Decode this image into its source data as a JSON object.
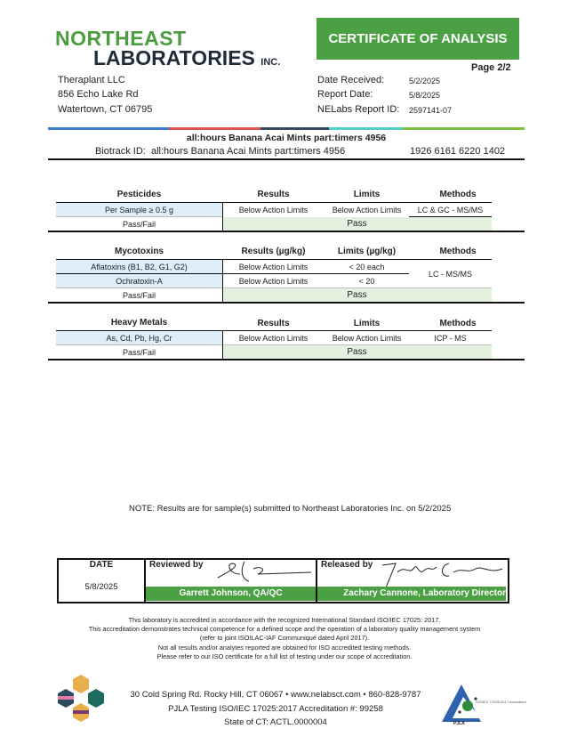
{
  "header": {
    "logo_line1": "NORTHEAST",
    "logo_line2": "LABORATORIES",
    "logo_suffix": "INC.",
    "banner": "CERTIFICATE OF ANALYSIS",
    "page": "Page 2/2"
  },
  "client": {
    "name": "Theraplant LLC",
    "address1": "856 Echo Lake Rd",
    "address2": "Watertown, CT 06795"
  },
  "report": {
    "date_received_label": "Date Received:",
    "date_received": "5/2/2025",
    "report_date_label": "Report Date:",
    "report_date": "5/8/2025",
    "report_id_label": "NELabs Report ID:",
    "report_id": "2597141-07"
  },
  "sample": {
    "title": "all:hours Banana Acai Mints part:timers 4956",
    "biotrack_label": "Biotrack ID:",
    "biotrack_name": "all:hours Banana Acai Mints part:timers 4956",
    "biotrack_id": "1926 6161 6220 1402"
  },
  "colors": {
    "accent": "#4aa043",
    "bar": [
      "#3b7bc8",
      "#e05252",
      "#34495e",
      "#4fd1c5",
      "#7cc23f"
    ]
  },
  "pesticides": {
    "headers": [
      "Pesticides",
      "Results",
      "Limits",
      "Methods"
    ],
    "row": [
      "Per Sample ≥ 0.5 g",
      "Below Action Limits",
      "Below Action Limits",
      "LC & GC - MS/MS"
    ],
    "pf_label": "Pass/Fail",
    "pf": "Pass"
  },
  "mycotoxins": {
    "headers": [
      "Mycotoxins",
      "Results (µg/kg)",
      "Limits (µg/kg)",
      "Methods"
    ],
    "rows": [
      [
        "Aflatoxins (B1, B2, G1, G2)",
        "Below Action Limits",
        "< 20 each"
      ],
      [
        "Ochratoxin-A",
        "Below Action Limits",
        "< 20"
      ]
    ],
    "method": "LC - MS/MS",
    "pf_label": "Pass/Fail",
    "pf": "Pass"
  },
  "metals": {
    "headers": [
      "Heavy Metals",
      "Results",
      "Limits",
      "Methods"
    ],
    "row": [
      "As, Cd, Pb, Hg, Cr",
      "Below Action Limits",
      "Below Action Limits",
      "ICP - MS"
    ],
    "pf_label": "Pass/Fail",
    "pf": "Pass"
  },
  "note": {
    "text": "NOTE: Results are for sample(s) submitted to Northeast Laboratories Inc. on",
    "date": "5/2/2025"
  },
  "signoff": {
    "date_label": "DATE",
    "date": "5/8/2025",
    "reviewed_label": "Reviewed by",
    "reviewer": "Garrett Johnson, QA/QC",
    "released_label": "Released by",
    "releaser": "Zachary Cannone, Laboratory Director"
  },
  "accreditation": [
    "This laboratory is accredited in accordance with the recognized International Standard ISO/IEC 17025: 2017.",
    "This accreditation demonstrates technical competence for a defined scope and the operation of a laboratory quality management system",
    "(refer to joint ISOILAC-IAF Communiqué dated April 2017).",
    "Not all results and/or analytes reported are obtained for ISO accredited testing methods.",
    "Please refer to our ISO certificate for a full list of testing under our scope of accreditation."
  ],
  "footer": {
    "line1": "30 Cold Spring Rd. Rocky Hill, CT 06067  •  www.nelabsct.com  •  860-828-9787",
    "line2": "PJLA Testing ISO/IEC 17025:2017 Accreditation #: 99258",
    "line3": "State of CT: ACTL.0000004",
    "pjla_text": "ISO/IEC 17025:2017 Accredited",
    "pjla_label": "PJLA"
  }
}
